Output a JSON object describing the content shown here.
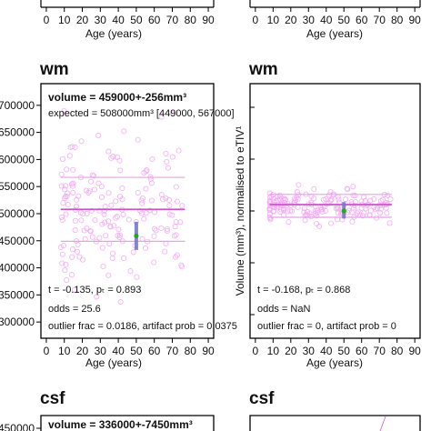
{
  "top_row": {
    "x_ticks": [
      "0",
      "10",
      "20",
      "30",
      "40",
      "50",
      "60",
      "70",
      "80",
      "90"
    ],
    "xlabel": "Age (years)"
  },
  "wm": {
    "title": "wm",
    "left": {
      "volume_text": "volume = 459000+-256mm³",
      "expected_text": "expected = 508000mm³ [449000, 567000]",
      "t_text": "t = -0.135, pₜ = 0.893",
      "odds_text": "odds = 25.6",
      "outlier_text": "outlier frac = 0.0186, artifact prob = 0.0375",
      "y_ticks": [
        "700000",
        "650000",
        "600000",
        "550000",
        "500000",
        "450000",
        "400000",
        "350000",
        "300000"
      ],
      "x_ticks": [
        "0",
        "10",
        "20",
        "30",
        "40",
        "50",
        "60",
        "70",
        "80",
        "90"
      ],
      "xlabel": "Age (years)"
    },
    "right": {
      "ylabel": "Volume (mm³), normalised to eTIV¹",
      "t_text": "t = -0.168, pₜ = 0.868",
      "odds_text": "odds = NaN",
      "outlier_text": "outlier frac = 0, artifact prob = 0",
      "x_ticks": [
        "0",
        "10",
        "20",
        "30",
        "40",
        "50",
        "60",
        "70",
        "80",
        "90"
      ],
      "xlabel": "Age (years)"
    }
  },
  "csf": {
    "title": "csf",
    "left": {
      "y_tick": "450000",
      "volume_text": "volume = 336000+-7450mm³"
    }
  },
  "colors": {
    "scatter": "#f2a8f2",
    "mean_line": "#cc55cc",
    "band_line": "#e8a0e8",
    "subject_bar": "#7777cc",
    "subject_point": "#22aa22",
    "axis": "#000000"
  },
  "chart_data": [
    {
      "type": "scatter",
      "panel": "wm-left",
      "title": "wm",
      "xlabel": "Age (years)",
      "ylabel": "",
      "xlim": [
        -3,
        93
      ],
      "ylim": [
        270000,
        740000
      ],
      "x_ticks": [
        0,
        10,
        20,
        30,
        40,
        50,
        60,
        70,
        80,
        90
      ],
      "y_ticks": [
        300000,
        350000,
        400000,
        450000,
        500000,
        550000,
        600000,
        650000,
        700000
      ],
      "reference_lines": {
        "mean": 508000,
        "lower": 449000,
        "upper": 567000,
        "x_range": [
          8,
          77
        ]
      },
      "subject": {
        "age": 50,
        "value": 459000,
        "range": [
          433000,
          485000
        ]
      },
      "cohort_summary": {
        "x_range": [
          8,
          77
        ],
        "y_center": 510000,
        "y_spread": 65000,
        "n": 180
      }
    },
    {
      "type": "scatter",
      "panel": "wm-right",
      "title": "wm",
      "xlabel": "Age (years)",
      "ylabel": "Volume (mm³), normalised to eTIV¹",
      "xlim": [
        -3,
        93
      ],
      "ylim": [
        0,
        1
      ],
      "x_ticks": [
        0,
        10,
        20,
        30,
        40,
        50,
        60,
        70,
        80,
        90
      ],
      "reference_lines": {
        "mean": 0.525,
        "lower": 0.475,
        "upper": 0.565,
        "x_range": [
          8,
          77
        ]
      },
      "subject": {
        "age": 50,
        "value": 0.5,
        "range": [
          0.47,
          0.535
        ]
      },
      "cohort_summary": {
        "x_range": [
          8,
          77
        ],
        "y_center": 0.52,
        "y_spread": 0.03,
        "n": 180
      }
    }
  ]
}
